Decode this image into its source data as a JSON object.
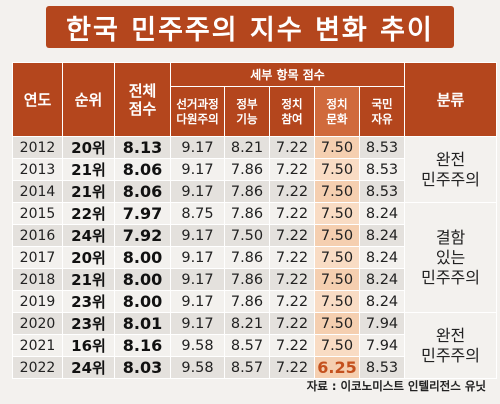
{
  "title": "한국 민주주의 지수 변화 추이",
  "headers": {
    "year": "연도",
    "rank": "순위",
    "total": [
      "전체",
      "점수"
    ],
    "detail_group": "세부 항목 점수",
    "detail": [
      [
        "선거과정",
        "다원주의"
      ],
      [
        "정부",
        "기능"
      ],
      [
        "정치",
        "참여"
      ],
      [
        "정치",
        "문화"
      ],
      [
        "국민",
        "자유"
      ]
    ],
    "classification": "분류"
  },
  "rows": [
    {
      "year": "2012",
      "rank": "20위",
      "total": "8.13",
      "scores": [
        "9.17",
        "8.21",
        "7.22",
        "7.50",
        "8.53"
      ]
    },
    {
      "year": "2013",
      "rank": "21위",
      "total": "8.06",
      "scores": [
        "9.17",
        "7.86",
        "7.22",
        "7.50",
        "8.53"
      ]
    },
    {
      "year": "2014",
      "rank": "21위",
      "total": "8.06",
      "scores": [
        "9.17",
        "7.86",
        "7.22",
        "7.50",
        "8.53"
      ]
    },
    {
      "year": "2015",
      "rank": "22위",
      "total": "7.97",
      "scores": [
        "8.75",
        "7.86",
        "7.22",
        "7.50",
        "8.24"
      ]
    },
    {
      "year": "2016",
      "rank": "24위",
      "total": "7.92",
      "scores": [
        "9.17",
        "7.50",
        "7.22",
        "7.50",
        "8.24"
      ]
    },
    {
      "year": "2017",
      "rank": "20위",
      "total": "8.00",
      "scores": [
        "9.17",
        "7.86",
        "7.22",
        "7.50",
        "8.24"
      ]
    },
    {
      "year": "2018",
      "rank": "21위",
      "total": "8.00",
      "scores": [
        "9.17",
        "7.86",
        "7.22",
        "7.50",
        "8.24"
      ]
    },
    {
      "year": "2019",
      "rank": "23위",
      "total": "8.00",
      "scores": [
        "9.17",
        "7.86",
        "7.22",
        "7.50",
        "8.24"
      ]
    },
    {
      "year": "2020",
      "rank": "23위",
      "total": "8.01",
      "scores": [
        "9.17",
        "8.21",
        "7.22",
        "7.50",
        "7.94"
      ]
    },
    {
      "year": "2021",
      "rank": "16위",
      "total": "8.16",
      "scores": [
        "9.58",
        "8.57",
        "7.22",
        "7.50",
        "7.94"
      ]
    },
    {
      "year": "2022",
      "rank": "24위",
      "total": "8.03",
      "scores": [
        "9.58",
        "8.57",
        "7.22",
        "6.25",
        "8.53"
      ]
    }
  ],
  "classifications": [
    {
      "lines": [
        "완전",
        "민주주의"
      ]
    },
    {
      "lines": [
        "결함",
        "있는",
        "민주주의"
      ]
    },
    {
      "lines": [
        "완전",
        "민주주의"
      ]
    }
  ],
  "source": "자료 : 이코노미스트 인텔리전스 유닛",
  "colors": {
    "header_bg": "#b4461d",
    "highlight_column": "#f5cfb0",
    "highlight_text": "#c4501d"
  }
}
